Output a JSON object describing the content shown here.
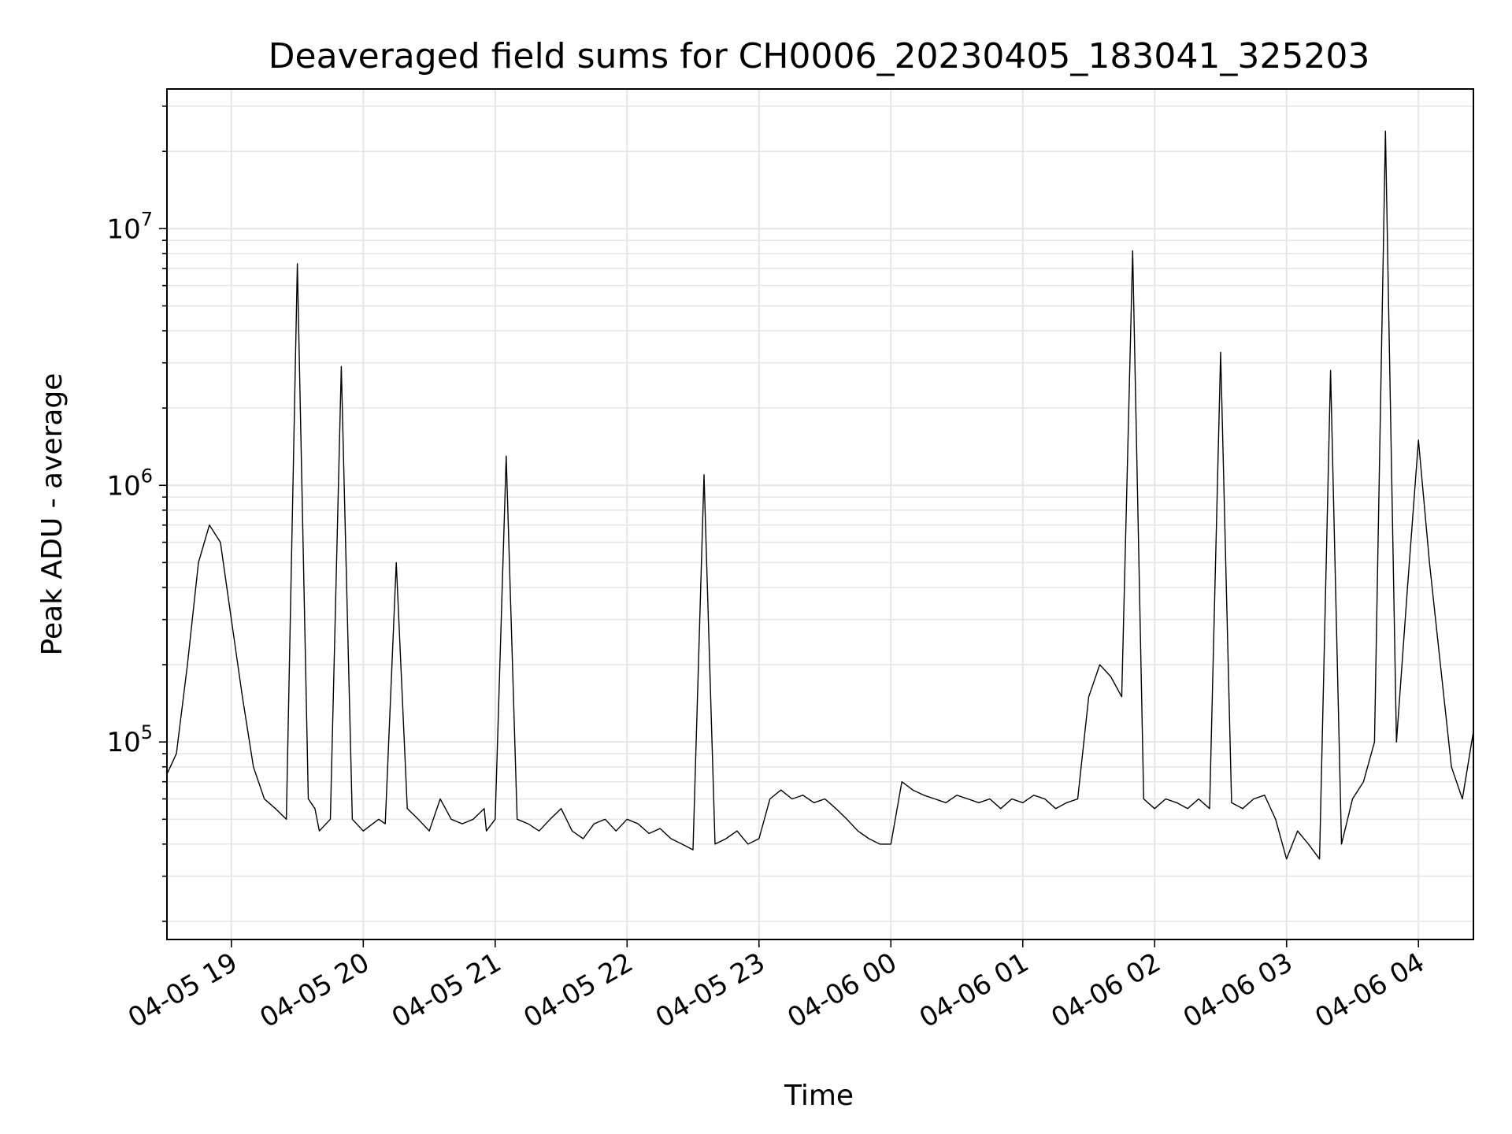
{
  "chart_data": {
    "type": "line",
    "title": "Deaveraged field sums for CH0006_20230405_183041_325203",
    "xlabel": "Time",
    "ylabel": "Peak ADU - average",
    "yscale": "log",
    "ylim": [
      17000,
      35000000
    ],
    "xlim": [
      "2023-04-05 18:30:41",
      "2023-04-06 04:25:00"
    ],
    "grid": true,
    "line_color": "#000000",
    "grid_color": "#e6e6e6",
    "x_ticks": [
      {
        "time": "2023-04-05 19:00:00",
        "label": "04-05 19"
      },
      {
        "time": "2023-04-05 20:00:00",
        "label": "04-05 20"
      },
      {
        "time": "2023-04-05 21:00:00",
        "label": "04-05 21"
      },
      {
        "time": "2023-04-05 22:00:00",
        "label": "04-05 22"
      },
      {
        "time": "2023-04-05 23:00:00",
        "label": "04-05 23"
      },
      {
        "time": "2023-04-06 00:00:00",
        "label": "04-06 00"
      },
      {
        "time": "2023-04-06 01:00:00",
        "label": "04-06 01"
      },
      {
        "time": "2023-04-06 02:00:00",
        "label": "04-06 02"
      },
      {
        "time": "2023-04-06 03:00:00",
        "label": "04-06 03"
      },
      {
        "time": "2023-04-06 04:00:00",
        "label": "04-06 04"
      }
    ],
    "y_ticks": [
      {
        "value": 100000,
        "base": "10",
        "exp": "5"
      },
      {
        "value": 1000000,
        "base": "10",
        "exp": "6"
      },
      {
        "value": 10000000,
        "base": "10",
        "exp": "7"
      }
    ],
    "series": [
      {
        "x": [
          "2023-04-05 18:30:41",
          "2023-04-05 18:35:00",
          "2023-04-05 18:40:00",
          "2023-04-05 18:45:00",
          "2023-04-05 18:50:00",
          "2023-04-05 18:55:00",
          "2023-04-05 19:00:00",
          "2023-04-05 19:05:00",
          "2023-04-05 19:10:00",
          "2023-04-05 19:15:00",
          "2023-04-05 19:20:00",
          "2023-04-05 19:25:00",
          "2023-04-05 19:30:00",
          "2023-04-05 19:35:00",
          "2023-04-05 19:38:00",
          "2023-04-05 19:40:00",
          "2023-04-05 19:45:00",
          "2023-04-05 19:50:00",
          "2023-04-05 19:55:00",
          "2023-04-05 20:00:00",
          "2023-04-05 20:07:00",
          "2023-04-05 20:10:00",
          "2023-04-05 20:15:00",
          "2023-04-05 20:20:00",
          "2023-04-05 20:25:00",
          "2023-04-05 20:30:00",
          "2023-04-05 20:35:00",
          "2023-04-05 20:40:00",
          "2023-04-05 20:45:00",
          "2023-04-05 20:50:00",
          "2023-04-05 20:55:00",
          "2023-04-05 20:56:00",
          "2023-04-05 21:00:00",
          "2023-04-05 21:05:00",
          "2023-04-05 21:10:00",
          "2023-04-05 21:15:00",
          "2023-04-05 21:20:00",
          "2023-04-05 21:25:00",
          "2023-04-05 21:30:00",
          "2023-04-05 21:35:00",
          "2023-04-05 21:40:00",
          "2023-04-05 21:45:00",
          "2023-04-05 21:50:00",
          "2023-04-05 21:55:00",
          "2023-04-05 22:00:00",
          "2023-04-05 22:05:00",
          "2023-04-05 22:10:00",
          "2023-04-05 22:15:00",
          "2023-04-05 22:20:00",
          "2023-04-05 22:25:00",
          "2023-04-05 22:30:00",
          "2023-04-05 22:35:00",
          "2023-04-05 22:40:00",
          "2023-04-05 22:45:00",
          "2023-04-05 22:50:00",
          "2023-04-05 22:55:00",
          "2023-04-05 23:00:00",
          "2023-04-05 23:05:00",
          "2023-04-05 23:10:00",
          "2023-04-05 23:15:00",
          "2023-04-05 23:20:00",
          "2023-04-05 23:25:00",
          "2023-04-05 23:30:00",
          "2023-04-05 23:35:00",
          "2023-04-05 23:40:00",
          "2023-04-05 23:45:00",
          "2023-04-05 23:50:00",
          "2023-04-05 23:55:00",
          "2023-04-06 00:00:00",
          "2023-04-06 00:05:00",
          "2023-04-06 00:10:00",
          "2023-04-06 00:15:00",
          "2023-04-06 00:20:00",
          "2023-04-06 00:25:00",
          "2023-04-06 00:30:00",
          "2023-04-06 00:35:00",
          "2023-04-06 00:40:00",
          "2023-04-06 00:45:00",
          "2023-04-06 00:50:00",
          "2023-04-06 00:55:00",
          "2023-04-06 01:00:00",
          "2023-04-06 01:05:00",
          "2023-04-06 01:10:00",
          "2023-04-06 01:15:00",
          "2023-04-06 01:20:00",
          "2023-04-06 01:25:00",
          "2023-04-06 01:30:00",
          "2023-04-06 01:35:00",
          "2023-04-06 01:40:00",
          "2023-04-06 01:45:00",
          "2023-04-06 01:50:00",
          "2023-04-06 01:55:00",
          "2023-04-06 02:00:00",
          "2023-04-06 02:05:00",
          "2023-04-06 02:10:00",
          "2023-04-06 02:15:00",
          "2023-04-06 02:20:00",
          "2023-04-06 02:25:00",
          "2023-04-06 02:30:00",
          "2023-04-06 02:35:00",
          "2023-04-06 02:40:00",
          "2023-04-06 02:45:00",
          "2023-04-06 02:50:00",
          "2023-04-06 02:55:00",
          "2023-04-06 03:00:00",
          "2023-04-06 03:05:00",
          "2023-04-06 03:10:00",
          "2023-04-06 03:15:00",
          "2023-04-06 03:20:00",
          "2023-04-06 03:25:00",
          "2023-04-06 03:30:00",
          "2023-04-06 03:35:00",
          "2023-04-06 03:40:00",
          "2023-04-06 03:45:00",
          "2023-04-06 03:50:00",
          "2023-04-06 03:55:00",
          "2023-04-06 04:00:00",
          "2023-04-06 04:05:00",
          "2023-04-06 04:10:00",
          "2023-04-06 04:15:00",
          "2023-04-06 04:20:00",
          "2023-04-06 04:25:00"
        ],
        "y": [
          75000,
          90000,
          200000,
          500000,
          700000,
          600000,
          300000,
          150000,
          80000,
          60000,
          55000,
          50000,
          7300000,
          60000,
          55000,
          45000,
          50000,
          2900000,
          50000,
          45000,
          50000,
          48000,
          500000,
          55000,
          50000,
          45000,
          60000,
          50000,
          48000,
          50000,
          55000,
          45000,
          50000,
          1300000,
          50000,
          48000,
          45000,
          50000,
          55000,
          45000,
          42000,
          48000,
          50000,
          45000,
          50000,
          48000,
          44000,
          46000,
          42000,
          40000,
          38000,
          1100000,
          40000,
          42000,
          45000,
          40000,
          42000,
          60000,
          65000,
          60000,
          62000,
          58000,
          60000,
          55000,
          50000,
          45000,
          42000,
          40000,
          40000,
          70000,
          65000,
          62000,
          60000,
          58000,
          62000,
          60000,
          58000,
          60000,
          55000,
          60000,
          58000,
          62000,
          60000,
          55000,
          58000,
          60000,
          150000,
          200000,
          180000,
          150000,
          8200000,
          60000,
          55000,
          60000,
          58000,
          55000,
          60000,
          55000,
          3300000,
          58000,
          55000,
          60000,
          62000,
          50000,
          35000,
          45000,
          40000,
          35000,
          2800000,
          40000,
          60000,
          70000,
          100000,
          24000000,
          100000,
          400000,
          1500000,
          500000,
          200000,
          80000,
          60000,
          110000
        ]
      }
    ]
  }
}
